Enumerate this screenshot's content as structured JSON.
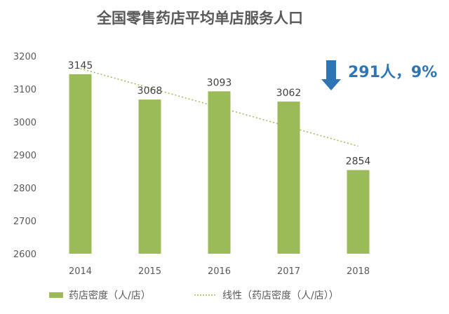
{
  "chart_data": {
    "type": "bar",
    "title": "全国零售药店平均单店服务人口",
    "categories": [
      "2014",
      "2015",
      "2016",
      "2017",
      "2018"
    ],
    "series": [
      {
        "name": "药店密度（人/店）",
        "values": [
          3145,
          3068,
          3093,
          3062,
          2854
        ]
      }
    ],
    "trendline": {
      "name": "线性（药店密度（人/店））",
      "type": "linear"
    },
    "ylim": [
      2600,
      3200
    ],
    "yticks": [
      2600,
      2700,
      2800,
      2900,
      3000,
      3100,
      3200
    ],
    "grid": false,
    "legend_position": "bottom",
    "annotation": {
      "text": "291人，9%",
      "icon": "down-arrow-icon"
    },
    "colors": {
      "bar": "#9BBB59",
      "trend": "#9BBB59",
      "annotation": "#2E75B6",
      "text": "#595959"
    }
  }
}
